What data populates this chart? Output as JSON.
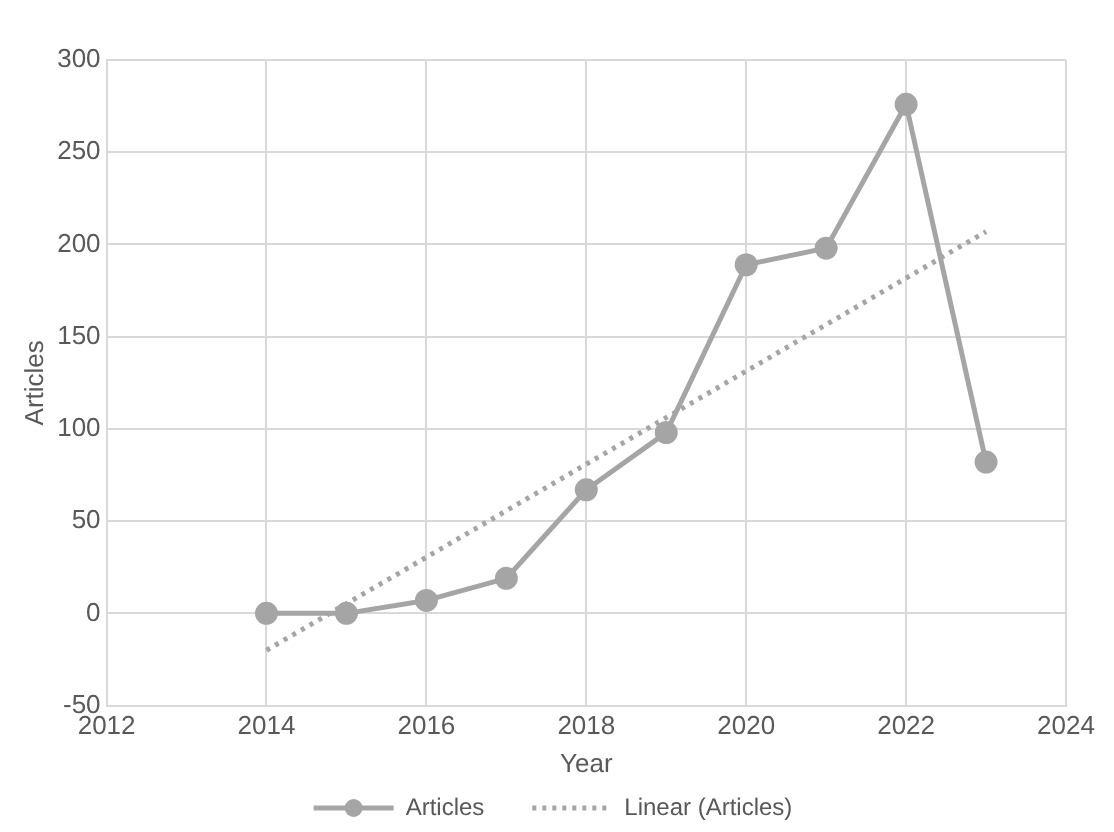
{
  "chart_data": {
    "type": "line",
    "xlabel": "Year",
    "ylabel": "Articles",
    "xlim": [
      2012,
      2024
    ],
    "xticks": [
      2012,
      2014,
      2016,
      2018,
      2020,
      2022,
      2024
    ],
    "ylim": [
      -50,
      300
    ],
    "yticks": [
      -50,
      0,
      50,
      100,
      150,
      200,
      250,
      300
    ],
    "grid": true,
    "legend": "bottom",
    "series": [
      {
        "name": "Articles",
        "color": "#a5a5a5",
        "marker": "circle",
        "line_style": "solid",
        "x": [
          2014,
          2015,
          2016,
          2017,
          2018,
          2019,
          2020,
          2021,
          2022,
          2023
        ],
        "values": [
          0,
          0,
          7,
          19,
          67,
          98,
          189,
          198,
          276,
          82
        ]
      },
      {
        "name": "Linear (Articles)",
        "type": "line",
        "color": "#a5a5a5",
        "marker": "none",
        "line_style": "dotted",
        "x": [
          2014,
          2023
        ],
        "values": [
          -20,
          207
        ]
      }
    ]
  }
}
